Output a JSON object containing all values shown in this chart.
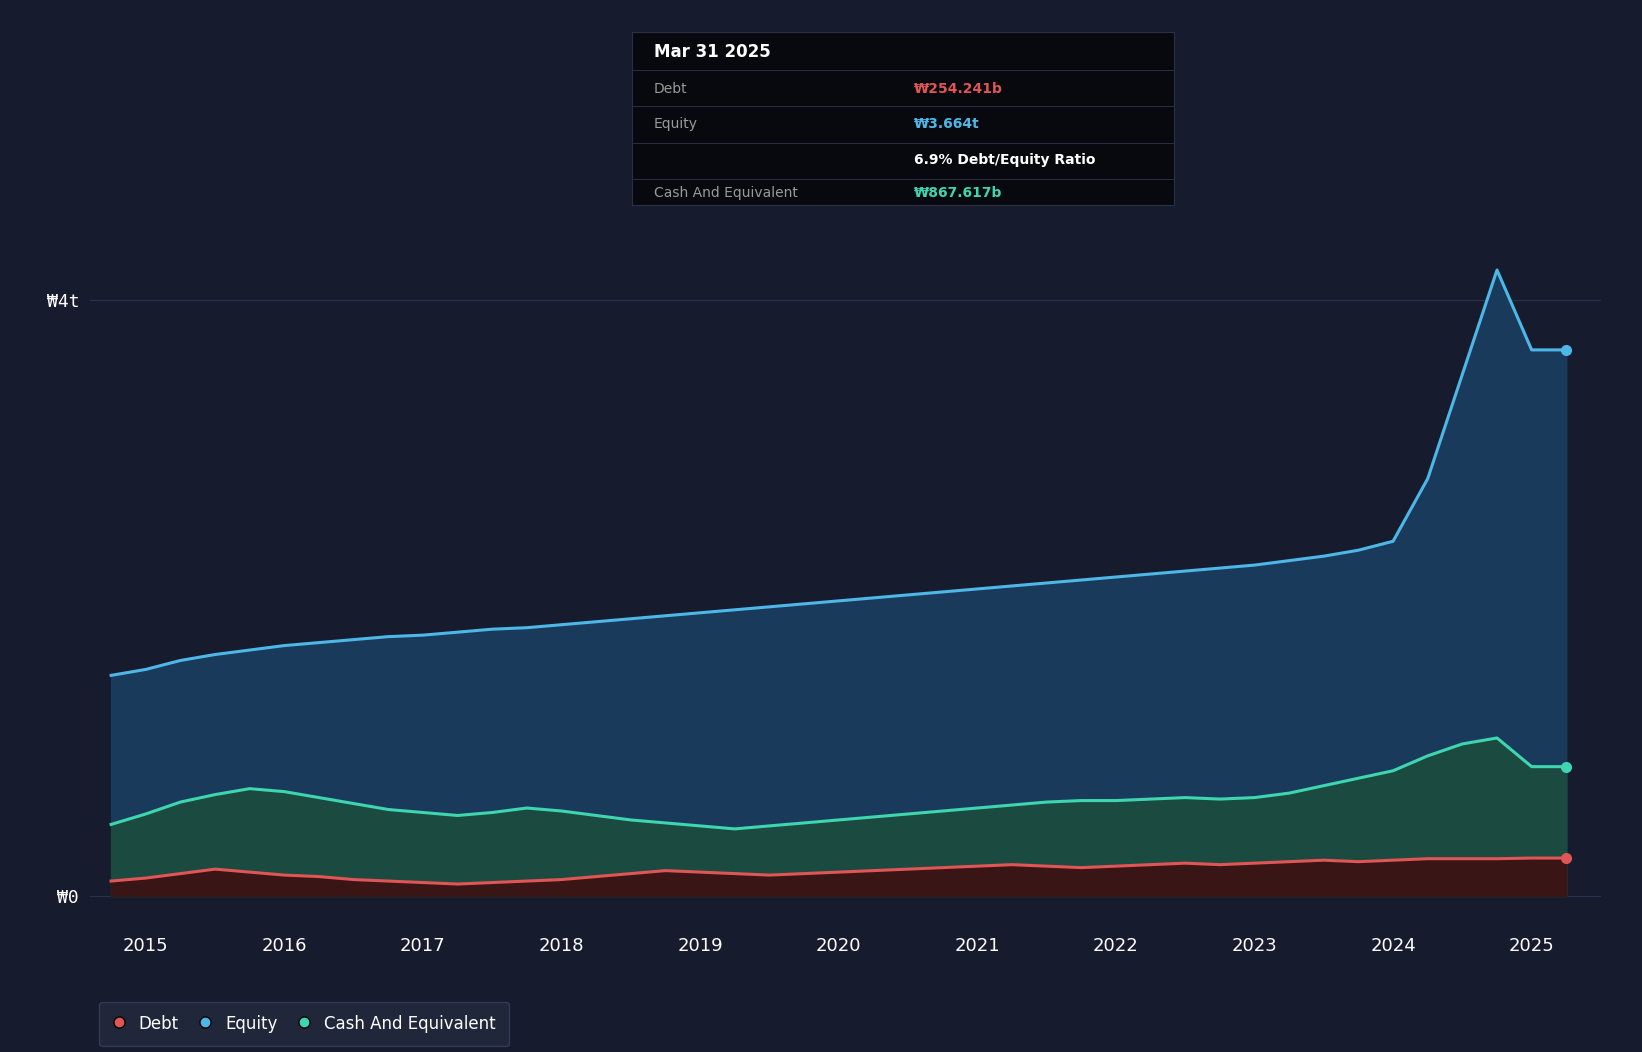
{
  "background_color": "#161b2e",
  "plot_bg_color": "#161b2e",
  "debt_color": "#e05555",
  "equity_color": "#4db8e8",
  "cash_color": "#3dd6b0",
  "equity_fill": "#1a3a5c",
  "cash_fill": "#1a4a40",
  "debt_fill": "#3a1515",
  "grid_color": "#2a3050",
  "tooltip_bg": "#07090f",
  "tooltip_divider": "#2a2f45",
  "tooltip_title": "Mar 31 2025",
  "tooltip_debt_label": "Debt",
  "tooltip_debt_value": "₩254.241b",
  "tooltip_equity_label": "Equity",
  "tooltip_equity_value": "₩3.664t",
  "tooltip_ratio": "6.9% Debt/Equity Ratio",
  "tooltip_cash_label": "Cash And Equivalent",
  "tooltip_cash_value": "₩867.617b",
  "ytick_labels": [
    "₩0",
    "₩4t"
  ],
  "ytick_positions": [
    0,
    4000000000000
  ],
  "xtick_labels": [
    "2015",
    "2016",
    "2017",
    "2018",
    "2019",
    "2020",
    "2021",
    "2022",
    "2023",
    "2024",
    "2025"
  ],
  "xtick_positions": [
    2015,
    2016,
    2017,
    2018,
    2019,
    2020,
    2021,
    2022,
    2023,
    2024,
    2025
  ],
  "xmin": 2014.6,
  "xmax": 2025.5,
  "ymin": -200000000000,
  "ymax": 4600000000000,
  "years": [
    2014.75,
    2015.0,
    2015.25,
    2015.5,
    2015.75,
    2016.0,
    2016.25,
    2016.5,
    2016.75,
    2017.0,
    2017.25,
    2017.5,
    2017.75,
    2018.0,
    2018.25,
    2018.5,
    2018.75,
    2019.0,
    2019.25,
    2019.5,
    2019.75,
    2020.0,
    2020.25,
    2020.5,
    2020.75,
    2021.0,
    2021.25,
    2021.5,
    2021.75,
    2022.0,
    2022.25,
    2022.5,
    2022.75,
    2023.0,
    2023.25,
    2023.5,
    2023.75,
    2024.0,
    2024.25,
    2024.5,
    2024.75,
    2025.0,
    2025.25
  ],
  "debt": [
    100000000000.0,
    120000000000.0,
    150000000000.0,
    180000000000.0,
    160000000000.0,
    140000000000.0,
    130000000000.0,
    110000000000.0,
    100000000000.0,
    90000000000.0,
    80000000000.0,
    90000000000.0,
    100000000000.0,
    110000000000.0,
    130000000000.0,
    150000000000.0,
    170000000000.0,
    160000000000.0,
    150000000000.0,
    140000000000.0,
    150000000000.0,
    160000000000.0,
    170000000000.0,
    180000000000.0,
    190000000000.0,
    200000000000.0,
    210000000000.0,
    200000000000.0,
    190000000000.0,
    200000000000.0,
    210000000000.0,
    220000000000.0,
    210000000000.0,
    220000000000.0,
    230000000000.0,
    240000000000.0,
    230000000000.0,
    240000000000.0,
    250000000000.0,
    250000000000.0,
    250000000000.0,
    254241000000.0,
    254241000000.0
  ],
  "equity": [
    1480000000000.0,
    1520000000000.0,
    1580000000000.0,
    1620000000000.0,
    1650000000000.0,
    1680000000000.0,
    1700000000000.0,
    1720000000000.0,
    1740000000000.0,
    1750000000000.0,
    1770000000000.0,
    1790000000000.0,
    1800000000000.0,
    1820000000000.0,
    1840000000000.0,
    1860000000000.0,
    1880000000000.0,
    1900000000000.0,
    1920000000000.0,
    1940000000000.0,
    1960000000000.0,
    1980000000000.0,
    2000000000000.0,
    2020000000000.0,
    2040000000000.0,
    2060000000000.0,
    2080000000000.0,
    2100000000000.0,
    2120000000000.0,
    2140000000000.0,
    2160000000000.0,
    2180000000000.0,
    2200000000000.0,
    2220000000000.0,
    2250000000000.0,
    2280000000000.0,
    2320000000000.0,
    2380000000000.0,
    2800000000000.0,
    3500000000000.0,
    4200000000000.0,
    3664000000000.0,
    3664000000000.0
  ],
  "cash": [
    480000000000.0,
    550000000000.0,
    630000000000.0,
    680000000000.0,
    720000000000.0,
    700000000000.0,
    660000000000.0,
    620000000000.0,
    580000000000.0,
    560000000000.0,
    540000000000.0,
    560000000000.0,
    590000000000.0,
    570000000000.0,
    540000000000.0,
    510000000000.0,
    490000000000.0,
    470000000000.0,
    450000000000.0,
    470000000000.0,
    490000000000.0,
    510000000000.0,
    530000000000.0,
    550000000000.0,
    570000000000.0,
    590000000000.0,
    610000000000.0,
    630000000000.0,
    640000000000.0,
    640000000000.0,
    650000000000.0,
    660000000000.0,
    650000000000.0,
    660000000000.0,
    690000000000.0,
    740000000000.0,
    790000000000.0,
    840000000000.0,
    940000000000.0,
    1020000000000.0,
    1060000000000.0,
    867617000000.0,
    867617000000.0
  ]
}
